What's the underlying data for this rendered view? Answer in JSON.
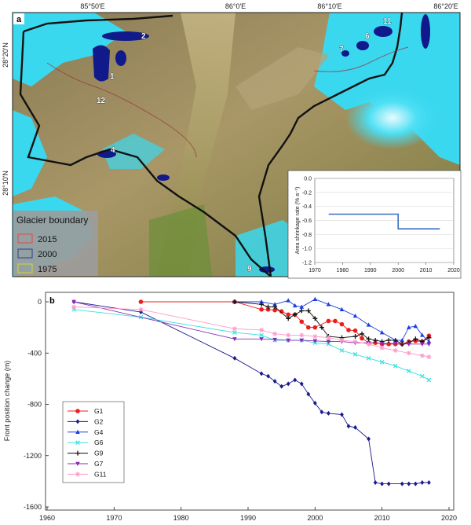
{
  "panel_a": {
    "label": "a",
    "coords": {
      "top": [
        "85°50'E",
        "86°0'E",
        "86°10'E",
        "86°20'E"
      ],
      "left": [
        "28°20'N",
        "28°10'N"
      ]
    },
    "lake_labels": [
      "1",
      "2",
      "4",
      "6",
      "7",
      "9",
      "11",
      "12"
    ],
    "legend": {
      "title": "Glacier boundary",
      "items": [
        {
          "label": "2015",
          "color": "#e8454a"
        },
        {
          "label": "2000",
          "color": "#2f3a8f"
        },
        {
          "label": "1975",
          "color": "#d8d23c"
        }
      ]
    },
    "colors": {
      "glacier": "#3ad8ef",
      "lake": "#101a8a",
      "boundary": "#111111"
    }
  },
  "chart_data": [
    {
      "type": "line",
      "title": "",
      "xlabel": "",
      "ylabel": "Area shrinkage rate (% a⁻¹)",
      "xlim": [
        1970,
        2020
      ],
      "ylim": [
        -1.2,
        0.0
      ],
      "xticks": [
        1970,
        1980,
        1990,
        2000,
        2010,
        2020
      ],
      "yticks": [
        0.0,
        -0.2,
        -0.4,
        -0.6,
        -0.8,
        -1.0,
        -1.2
      ],
      "ytick_labels": [
        "0.0",
        "-0.2",
        "-0.4",
        "-0.6",
        "-0.8",
        "-1.0",
        "-1.2"
      ],
      "series": [
        {
          "color": "#3b6fc4",
          "points": [
            [
              1975,
              -0.51
            ],
            [
              2000,
              -0.51
            ],
            [
              2000,
              -0.72
            ],
            [
              2015,
              -0.72
            ]
          ]
        }
      ]
    },
    {
      "type": "line",
      "title": "",
      "panel_label": "b",
      "xlabel": "",
      "ylabel": "Front position change (m)",
      "xlim": [
        1960,
        2020
      ],
      "ylim": [
        -1600,
        0
      ],
      "xticks": [
        1960,
        1970,
        1980,
        1990,
        2000,
        2010,
        2020
      ],
      "yticks": [
        0,
        -400,
        -800,
        -1200,
        -1600
      ],
      "legend_position": "lower-left",
      "series": [
        {
          "name": "G1",
          "color": "#ee1c1c",
          "marker": "circle",
          "points": [
            [
              1974,
              0
            ],
            [
              1988,
              0
            ],
            [
              1992,
              -60
            ],
            [
              1993,
              -60
            ],
            [
              1994,
              -65
            ],
            [
              1995,
              -75
            ],
            [
              1996,
              -100
            ],
            [
              1997,
              -100
            ],
            [
              1998,
              -155
            ],
            [
              1999,
              -200
            ],
            [
              2000,
              -200
            ],
            [
              2002,
              -150
            ],
            [
              2003,
              -150
            ],
            [
              2004,
              -175
            ],
            [
              2005,
              -220
            ],
            [
              2006,
              -225
            ],
            [
              2007,
              -285
            ],
            [
              2008,
              -320
            ],
            [
              2009,
              -320
            ],
            [
              2010,
              -330
            ],
            [
              2011,
              -330
            ],
            [
              2012,
              -330
            ],
            [
              2013,
              -330
            ],
            [
              2014,
              -310
            ],
            [
              2015,
              -305
            ],
            [
              2016,
              -310
            ],
            [
              2017,
              -265
            ]
          ]
        },
        {
          "name": "G2",
          "color": "#1a1a8c",
          "marker": "diamond",
          "points": [
            [
              1964,
              0
            ],
            [
              1974,
              -80
            ],
            [
              1988,
              -440
            ],
            [
              1992,
              -560
            ],
            [
              1993,
              -580
            ],
            [
              1994,
              -620
            ],
            [
              1995,
              -660
            ],
            [
              1996,
              -640
            ],
            [
              1997,
              -610
            ],
            [
              1998,
              -640
            ],
            [
              1999,
              -720
            ],
            [
              2000,
              -790
            ],
            [
              2001,
              -860
            ],
            [
              2002,
              -870
            ],
            [
              2004,
              -880
            ],
            [
              2005,
              -970
            ],
            [
              2006,
              -980
            ],
            [
              2008,
              -1070
            ],
            [
              2009,
              -1410
            ],
            [
              2010,
              -1420
            ],
            [
              2011,
              -1420
            ],
            [
              2013,
              -1420
            ],
            [
              2014,
              -1420
            ],
            [
              2015,
              -1420
            ],
            [
              2016,
              -1410
            ],
            [
              2017,
              -1410
            ]
          ]
        },
        {
          "name": "G4",
          "color": "#1c3ee0",
          "marker": "triangle-up",
          "points": [
            [
              1988,
              0
            ],
            [
              1992,
              0
            ],
            [
              1994,
              -20
            ],
            [
              1996,
              10
            ],
            [
              1997,
              -30
            ],
            [
              1998,
              -40
            ],
            [
              2000,
              20
            ],
            [
              2002,
              -20
            ],
            [
              2004,
              -60
            ],
            [
              2006,
              -110
            ],
            [
              2008,
              -180
            ],
            [
              2010,
              -240
            ],
            [
              2012,
              -300
            ],
            [
              2013,
              -300
            ],
            [
              2014,
              -200
            ],
            [
              2015,
              -190
            ],
            [
              2016,
              -260
            ],
            [
              2017,
              -310
            ]
          ]
        },
        {
          "name": "G6",
          "color": "#35e0e0",
          "marker": "x",
          "points": [
            [
              1964,
              -60
            ],
            [
              1974,
              -120
            ],
            [
              1988,
              -240
            ],
            [
              1992,
              -260
            ],
            [
              1994,
              -300
            ],
            [
              1996,
              -300
            ],
            [
              1998,
              -300
            ],
            [
              2000,
              -320
            ],
            [
              2002,
              -330
            ],
            [
              2004,
              -380
            ],
            [
              2006,
              -410
            ],
            [
              2008,
              -440
            ],
            [
              2010,
              -470
            ],
            [
              2012,
              -500
            ],
            [
              2014,
              -540
            ],
            [
              2016,
              -580
            ],
            [
              2017,
              -610
            ]
          ]
        },
        {
          "name": "G9",
          "color": "#111111",
          "marker": "plus",
          "points": [
            [
              1988,
              0
            ],
            [
              1992,
              -20
            ],
            [
              1993,
              -40
            ],
            [
              1994,
              -40
            ],
            [
              1996,
              -130
            ],
            [
              1997,
              -100
            ],
            [
              1998,
              -70
            ],
            [
              1999,
              -70
            ],
            [
              2000,
              -130
            ],
            [
              2001,
              -200
            ],
            [
              2002,
              -270
            ],
            [
              2004,
              -280
            ],
            [
              2006,
              -270
            ],
            [
              2007,
              -250
            ],
            [
              2008,
              -290
            ],
            [
              2009,
              -300
            ],
            [
              2010,
              -310
            ],
            [
              2011,
              -300
            ],
            [
              2012,
              -300
            ],
            [
              2013,
              -330
            ],
            [
              2014,
              -320
            ],
            [
              2015,
              -290
            ],
            [
              2016,
              -310
            ],
            [
              2017,
              -280
            ]
          ]
        },
        {
          "name": "G7",
          "color": "#8b2bb5",
          "marker": "triangle-down",
          "points": [
            [
              1964,
              0
            ],
            [
              1988,
              -290
            ],
            [
              1992,
              -290
            ],
            [
              1994,
              -295
            ],
            [
              1996,
              -300
            ],
            [
              1998,
              -300
            ],
            [
              2000,
              -305
            ],
            [
              2002,
              -310
            ],
            [
              2004,
              -310
            ],
            [
              2006,
              -320
            ],
            [
              2008,
              -320
            ],
            [
              2010,
              -325
            ],
            [
              2012,
              -325
            ],
            [
              2014,
              -330
            ],
            [
              2016,
              -330
            ],
            [
              2017,
              -330
            ]
          ]
        },
        {
          "name": "G11",
          "color": "#ff9ac8",
          "marker": "star",
          "points": [
            [
              1964,
              -40
            ],
            [
              1974,
              -60
            ],
            [
              1988,
              -210
            ],
            [
              1992,
              -220
            ],
            [
              1994,
              -250
            ],
            [
              1996,
              -260
            ],
            [
              1998,
              -260
            ],
            [
              2000,
              -270
            ],
            [
              2002,
              -280
            ],
            [
              2004,
              -300
            ],
            [
              2006,
              -310
            ],
            [
              2008,
              -330
            ],
            [
              2010,
              -360
            ],
            [
              2012,
              -380
            ],
            [
              2014,
              -400
            ],
            [
              2016,
              -420
            ],
            [
              2017,
              -430
            ]
          ]
        }
      ]
    }
  ]
}
